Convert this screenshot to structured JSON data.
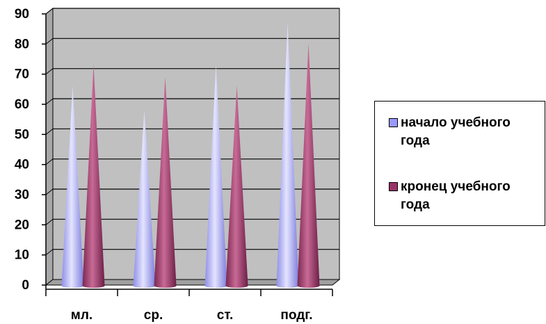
{
  "chart_data": {
    "type": "bar",
    "bar_shape": "cone",
    "categories": [
      "мл.",
      "ср.",
      "ст.",
      "подг."
    ],
    "series": [
      {
        "name": "начало учебного года",
        "values": [
          65,
          57,
          72,
          86
        ],
        "color": "#9999ff"
      },
      {
        "name": "кронец учебного года",
        "values": [
          72,
          68,
          65,
          79
        ],
        "color": "#993366"
      }
    ],
    "ylim": [
      0,
      90
    ],
    "yticks": [
      "0",
      "10",
      "20",
      "30",
      "40",
      "50",
      "60",
      "70",
      "80",
      "90"
    ],
    "grid": true,
    "legend_position": "right",
    "wall_color": "#c0c0c0"
  }
}
